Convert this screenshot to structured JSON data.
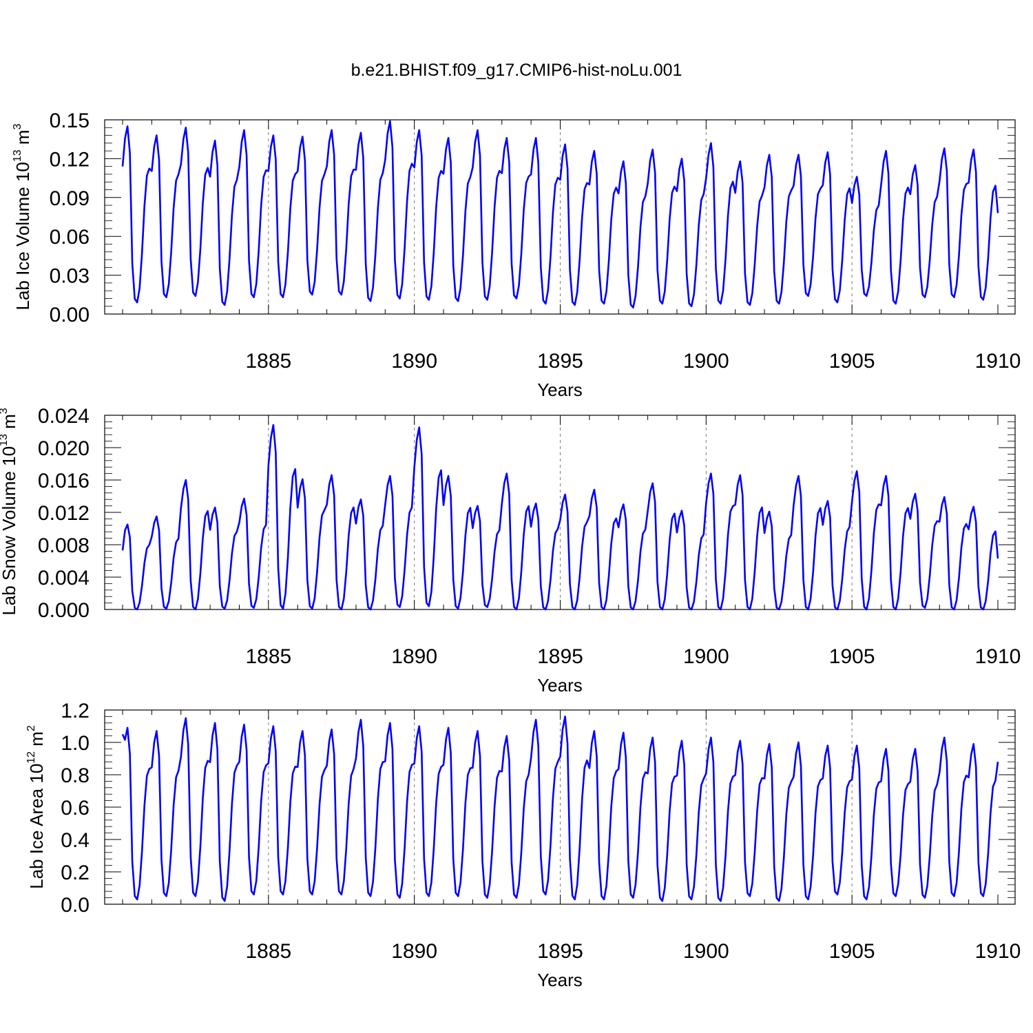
{
  "title": "b.e21.BHIST.f09_g17.CMIP6-hist-noLu.001",
  "line_color": "#0000ff",
  "chart_data": [
    {
      "type": "line",
      "title": "b.e21.BHIST.f09_g17.CMIP6-hist-noLu.001",
      "xlabel": "Years",
      "ylabel_text": "Lab Ice Volume 10",
      "ylabel_sup": "13",
      "ylabel_unit": " m",
      "ylabel_unit_sup": "3",
      "xlim": [
        1880,
        1910
      ],
      "ylim": [
        0,
        0.15
      ],
      "xticks": [
        "1885",
        "1890",
        "1895",
        "1900",
        "1905",
        "1910"
      ],
      "xtick_values": [
        1885,
        1890,
        1895,
        1900,
        1905,
        1910
      ],
      "yticks": [
        "0.00",
        "0.03",
        "0.06",
        "0.09",
        "0.12",
        "0.15"
      ],
      "ytick_values": [
        0,
        0.03,
        0.06,
        0.09,
        0.12,
        0.15
      ],
      "grid": "dashed vertical at 1885, 1890, 1895, 1900, 1905",
      "series": [
        {
          "name": "Lab Ice Volume",
          "monthly_cycles": {
            "peak_values": [
              0.145,
              0.138,
              0.144,
              0.134,
              0.142,
              0.138,
              0.137,
              0.142,
              0.14,
              0.149,
              0.142,
              0.136,
              0.142,
              0.136,
              0.136,
              0.131,
              0.126,
              0.118,
              0.127,
              0.12,
              0.132,
              0.118,
              0.123,
              0.123,
              0.125,
              0.106,
              0.126,
              0.115,
              0.128,
              0.127
            ],
            "trough_values": [
              0.009,
              0.013,
              0.014,
              0.007,
              0.013,
              0.013,
              0.015,
              0.015,
              0.01,
              0.012,
              0.011,
              0.01,
              0.011,
              0.012,
              0.008,
              0.007,
              0.008,
              0.005,
              0.008,
              0.006,
              0.008,
              0.007,
              0.008,
              0.014,
              0.009,
              0.014,
              0.008,
              0.013,
              0.013,
              0.011
            ],
            "start_value": 0.114,
            "end_value": 0.078
          }
        }
      ]
    },
    {
      "type": "line",
      "xlabel": "Years",
      "ylabel_text": "Lab Snow Volume 10",
      "ylabel_sup": "13",
      "ylabel_unit": " m",
      "ylabel_unit_sup": "3",
      "xlim": [
        1880,
        1910
      ],
      "ylim": [
        0,
        0.024
      ],
      "xticks": [
        "1885",
        "1890",
        "1895",
        "1900",
        "1905",
        "1910"
      ],
      "xtick_values": [
        1885,
        1890,
        1895,
        1900,
        1905,
        1910
      ],
      "yticks": [
        "0.000",
        "0.004",
        "0.008",
        "0.012",
        "0.016",
        "0.020",
        "0.024"
      ],
      "ytick_values": [
        0,
        0.004,
        0.008,
        0.012,
        0.016,
        0.02,
        0.024
      ],
      "grid": "dashed vertical at 1885, 1890, 1895, 1900, 1905",
      "series": [
        {
          "name": "Lab Snow Volume",
          "monthly_cycles": {
            "peak_values": [
              0.0105,
              0.0115,
              0.016,
              0.0126,
              0.0137,
              0.0228,
              0.0161,
              0.0166,
              0.0136,
              0.0165,
              0.0225,
              0.0165,
              0.0128,
              0.0168,
              0.0131,
              0.0142,
              0.0148,
              0.013,
              0.0156,
              0.0122,
              0.0168,
              0.0166,
              0.0121,
              0.0165,
              0.0134,
              0.0171,
              0.0165,
              0.0143,
              0.0139,
              0.0127
            ],
            "trough_values": [
              0.0,
              0.0001,
              0.0,
              0.0001,
              0.0002,
              0.0001,
              0.0001,
              0.0,
              0.0,
              0.0003,
              0.0004,
              0.0001,
              0.0003,
              0.0,
              0.0,
              0.0,
              0.0,
              0.0,
              0.0,
              0.0,
              0.0,
              0.0,
              0.0,
              0.0,
              0.0,
              0.0,
              0.0,
              0.0002,
              0.0,
              0.0
            ],
            "start_value": 0.0073,
            "end_value": 0.0063
          }
        }
      ]
    },
    {
      "type": "line",
      "xlabel": "Years",
      "ylabel_text": "Lab Ice Area 10",
      "ylabel_sup": "12",
      "ylabel_unit": " m",
      "ylabel_unit_sup": "2",
      "xlim": [
        1880,
        1910
      ],
      "ylim": [
        0,
        1.2
      ],
      "xticks": [
        "1885",
        "1890",
        "1895",
        "1900",
        "1905",
        "1910"
      ],
      "xtick_values": [
        1885,
        1890,
        1895,
        1900,
        1905,
        1910
      ],
      "yticks": [
        "0.0",
        "0.2",
        "0.4",
        "0.6",
        "0.8",
        "1.0",
        "1.2"
      ],
      "ytick_values": [
        0,
        0.2,
        0.4,
        0.6,
        0.8,
        1.0,
        1.2
      ],
      "grid": "dashed vertical at 1885, 1890, 1895, 1900, 1905",
      "series": [
        {
          "name": "Lab Ice Area",
          "monthly_cycles": {
            "peak_values": [
              1.09,
              1.07,
              1.15,
              1.12,
              1.11,
              1.1,
              1.07,
              1.08,
              1.14,
              1.12,
              1.1,
              1.09,
              1.07,
              1.04,
              1.14,
              1.16,
              1.07,
              1.06,
              1.03,
              1.01,
              1.03,
              1.01,
              0.99,
              1.0,
              0.98,
              0.98,
              0.96,
              0.96,
              1.03,
              0.99
            ],
            "trough_values": [
              0.03,
              0.05,
              0.05,
              0.02,
              0.06,
              0.06,
              0.06,
              0.06,
              0.05,
              0.04,
              0.05,
              0.05,
              0.04,
              0.04,
              0.06,
              0.03,
              0.03,
              0.04,
              0.02,
              0.03,
              0.02,
              0.05,
              0.02,
              0.03,
              0.06,
              0.03,
              0.05,
              0.04,
              0.05,
              0.05
            ],
            "start_value": 1.05,
            "end_value": 0.88
          }
        }
      ]
    }
  ]
}
